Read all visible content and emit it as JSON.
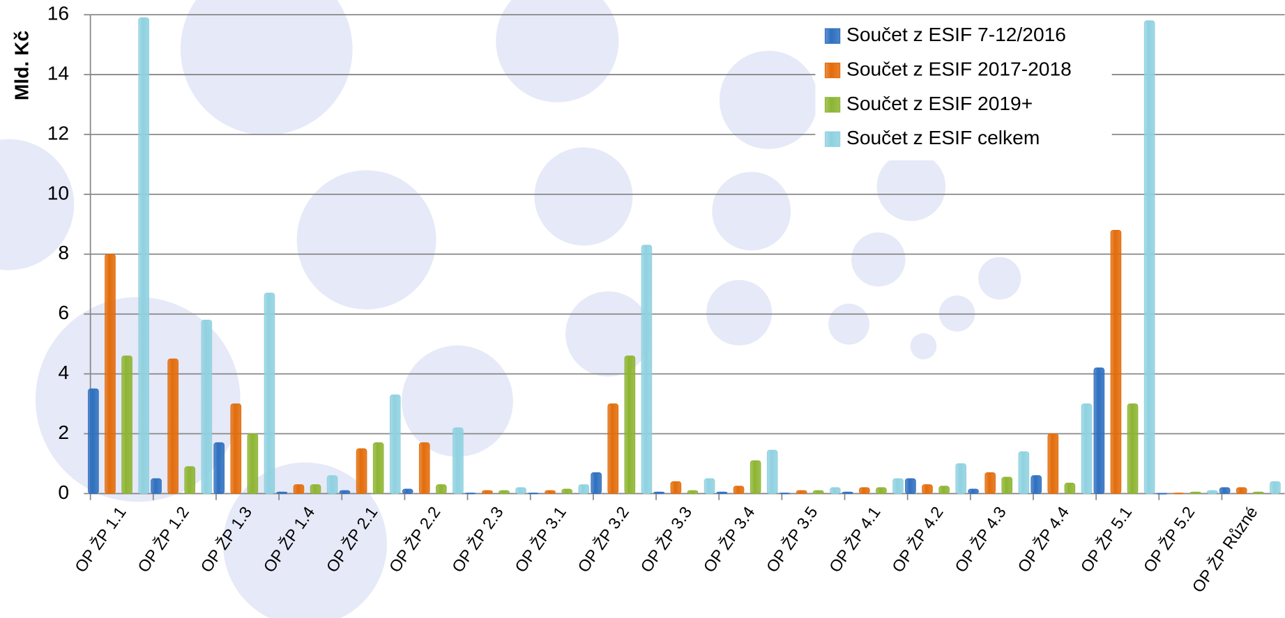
{
  "chart_data": {
    "type": "bar",
    "y_label": "Mld. Kč",
    "categories": [
      "OP ŽP 1.1",
      "OP ŽP 1.2",
      "OP ŽP 1.3",
      "OP ŽP 1.4",
      "OP ŽP 2.1",
      "OP ŽP 2.2",
      "OP ŽP 2.3",
      "OP ŽP 3.1",
      "OP ŽP 3.2",
      "OP ŽP 3.3",
      "OP ŽP 3.4",
      "OP ŽP 3.5",
      "OP ŽP 4.1",
      "OP ŽP 4.2",
      "OP ŽP 4.3",
      "OP ŽP 4.4",
      "OP ŽP 5.1",
      "OP ŽP 5.2",
      "OP ŽP Různé"
    ],
    "series": [
      {
        "name": "Součet z ESIF 7-12/2016",
        "color": "#2e6fbf",
        "values": [
          3.5,
          0.5,
          1.7,
          0.05,
          0.1,
          0.15,
          0.02,
          0.02,
          0.7,
          0.05,
          0.05,
          0.02,
          0.05,
          0.5,
          0.15,
          0.6,
          4.2,
          0.01,
          0.2
        ]
      },
      {
        "name": "Součet z ESIF 2017-2018",
        "color": "#e36c0a",
        "values": [
          8.0,
          4.5,
          3.0,
          0.3,
          1.5,
          1.7,
          0.1,
          0.1,
          3.0,
          0.4,
          0.25,
          0.1,
          0.2,
          0.3,
          0.7,
          2.0,
          8.8,
          0.02,
          0.2
        ]
      },
      {
        "name": "Součet z ESIF 2019+",
        "color": "#8db431",
        "values": [
          4.6,
          0.9,
          2.0,
          0.3,
          1.7,
          0.3,
          0.1,
          0.15,
          4.6,
          0.1,
          1.1,
          0.1,
          0.2,
          0.25,
          0.55,
          0.35,
          3.0,
          0.05,
          0.05
        ]
      },
      {
        "name": "Součet z ESIF celkem",
        "color": "#8fd1e0",
        "values": [
          15.9,
          5.8,
          6.7,
          0.6,
          3.3,
          2.2,
          0.2,
          0.3,
          8.3,
          0.5,
          1.45,
          0.2,
          0.5,
          1.0,
          1.4,
          3.0,
          15.8,
          0.1,
          0.4
        ]
      }
    ],
    "ylim": [
      0,
      16
    ],
    "yticks": [
      0,
      2,
      4,
      6,
      8,
      10,
      12,
      14,
      16
    ],
    "grid": true,
    "legend": "top-right"
  }
}
